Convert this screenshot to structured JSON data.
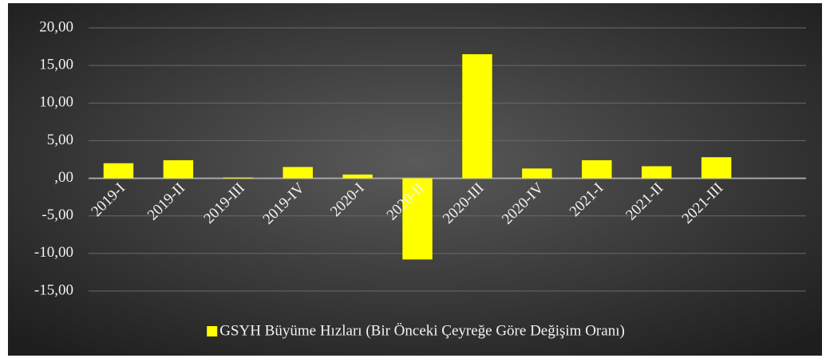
{
  "chart_data": {
    "type": "bar",
    "categories": [
      "2019-I",
      "2019-II",
      "2019-III",
      "2019-IV",
      "2020-I",
      "2020-II",
      "2020-III",
      "2020-IV",
      "2021-I",
      "2021-II",
      "2021-III",
      null
    ],
    "series": [
      {
        "name": "GSYH Büyüme Hızları (Bir Önceki Çeyreğe Göre Değişim Oranı)",
        "color": "#ffff00",
        "values": [
          2.0,
          2.4,
          0.1,
          1.5,
          0.5,
          -10.8,
          16.5,
          1.3,
          2.4,
          1.6,
          2.8,
          null
        ]
      }
    ],
    "ylim": [
      -15,
      20
    ],
    "yticks": [
      {
        "value": -15,
        "label": "-15,00"
      },
      {
        "value": -10,
        "label": "-10,00"
      },
      {
        "value": -5,
        "label": "-5,00"
      },
      {
        "value": 0,
        "label": ",00"
      },
      {
        "value": 5,
        "label": "5,00"
      },
      {
        "value": 10,
        "label": "10,00"
      },
      {
        "value": 15,
        "label": "15,00"
      },
      {
        "value": 20,
        "label": "20,00"
      }
    ],
    "grid": true,
    "legend": "bottom"
  }
}
